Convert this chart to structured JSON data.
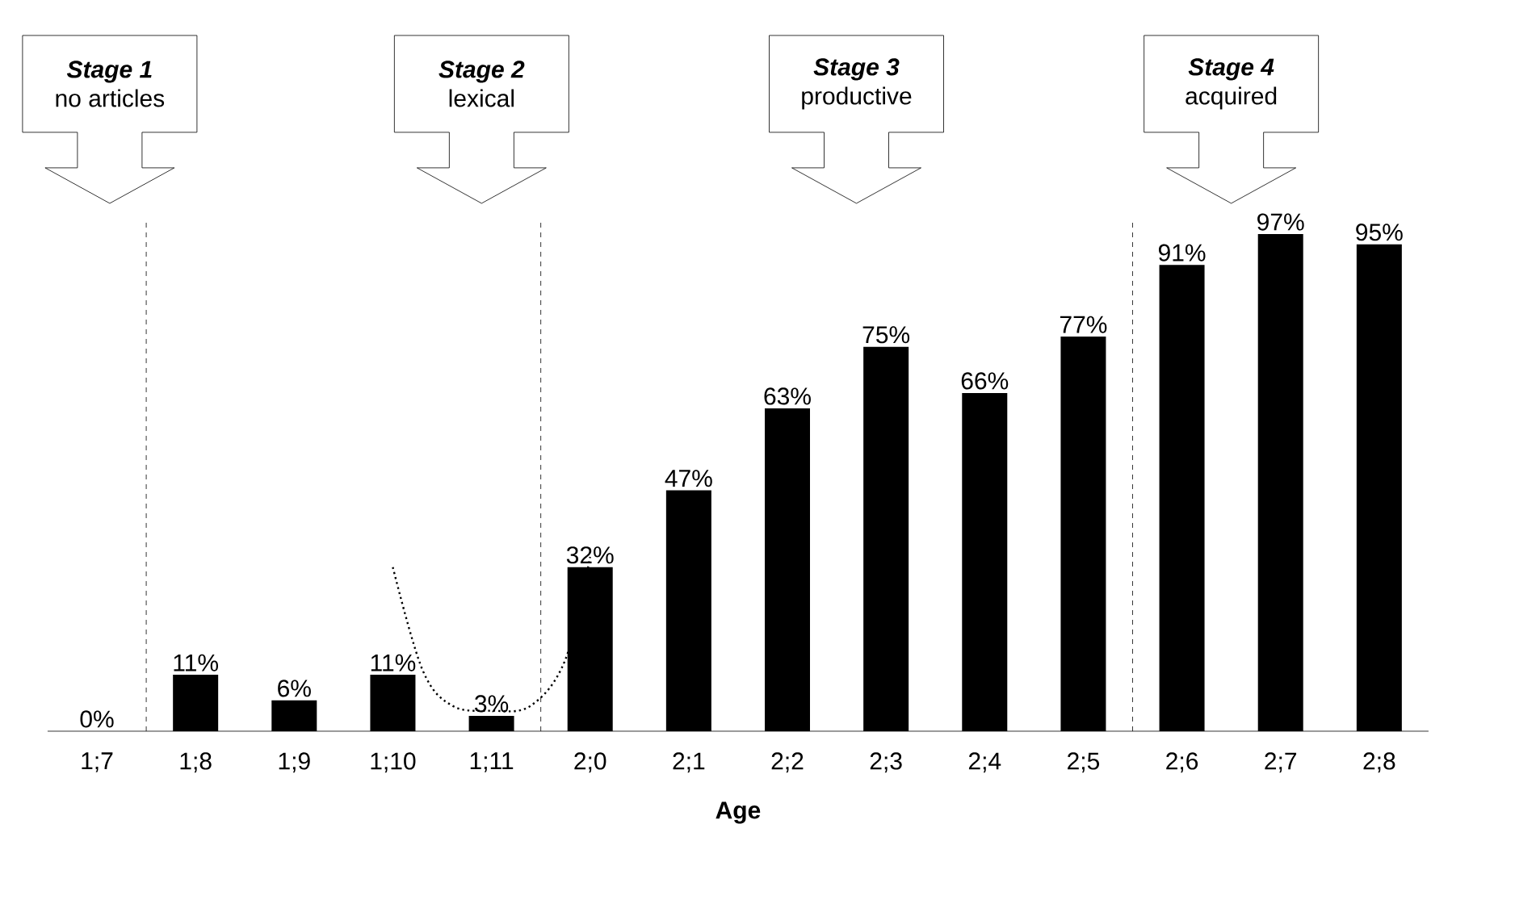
{
  "chart_data": {
    "type": "bar",
    "xlabel": "Age",
    "categories": [
      "1;7",
      "1;8",
      "1;9",
      "1;10",
      "1;11",
      "2;0",
      "2;1",
      "2;2",
      "2;3",
      "2;4",
      "2;5",
      "2;6",
      "2;7",
      "2;8"
    ],
    "values": [
      0,
      11,
      6,
      11,
      3,
      32,
      47,
      63,
      75,
      66,
      77,
      91,
      97,
      95
    ],
    "value_labels": [
      "0%",
      "11%",
      "6%",
      "11%",
      "3%",
      "32%",
      "47%",
      "63%",
      "75%",
      "66%",
      "77%",
      "91%",
      "97%",
      "95%"
    ],
    "color": "#000000",
    "tick_labels": "x",
    "grid": false,
    "annotations": [
      "Stage 1",
      "no articles",
      "Stage 2",
      "lexical",
      "Stage 3",
      "productive",
      "Stage 4",
      "acquired"
    ]
  }
}
